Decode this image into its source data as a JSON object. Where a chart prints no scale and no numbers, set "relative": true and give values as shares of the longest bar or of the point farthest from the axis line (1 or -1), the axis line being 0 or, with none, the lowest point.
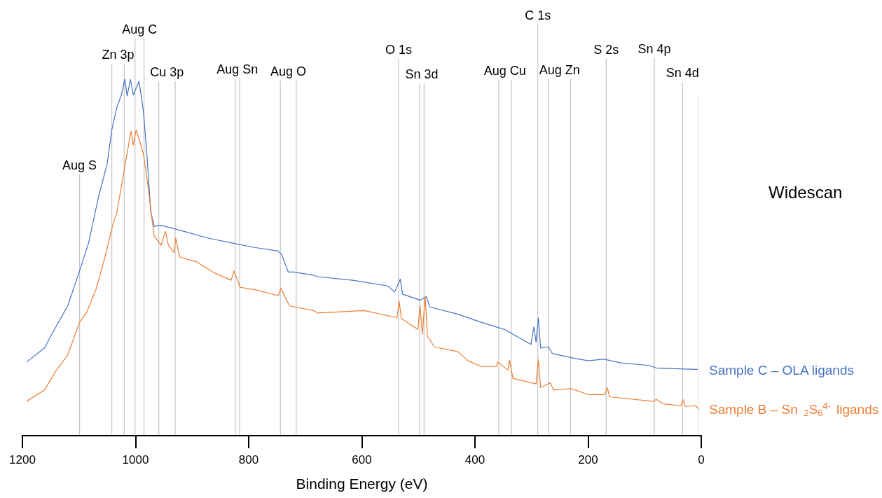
{
  "chart_data": {
    "type": "line",
    "title": "Widescan",
    "xlabel": "Binding Energy (eV)",
    "relative": true,
    "xlim": [
      1200,
      0
    ],
    "xticks": [
      1200,
      1000,
      800,
      600,
      400,
      200,
      0
    ],
    "grid": false,
    "marker": "none",
    "line_style": "solid",
    "series": [
      {
        "name": "Sample C – OLA ligands",
        "color": "#4472c4",
        "x": [
          1192,
          1161,
          1141,
          1120,
          1099,
          1083,
          1066,
          1050,
          1042,
          1033,
          1025,
          1019,
          1015,
          1009,
          1004,
          994,
          990,
          986,
          980,
          973,
          967,
          955,
          914,
          872,
          831,
          790,
          748,
          742,
          730,
          720,
          686,
          678,
          616,
          554,
          542,
          532,
          528,
          497,
          486,
          480,
          431,
          389,
          348,
          301,
          296,
          292,
          288,
          284,
          270,
          263,
          224,
          199,
          173,
          142,
          92,
          80,
          30,
          7
        ],
        "values": [
          0.207,
          0.246,
          0.305,
          0.364,
          0.462,
          0.541,
          0.666,
          0.764,
          0.858,
          0.921,
          0.956,
          1.0,
          0.953,
          0.999,
          0.956,
          0.994,
          0.953,
          0.907,
          0.789,
          0.626,
          0.587,
          0.59,
          0.573,
          0.554,
          0.541,
          0.528,
          0.518,
          0.509,
          0.459,
          0.459,
          0.45,
          0.446,
          0.436,
          0.42,
          0.403,
          0.439,
          0.397,
          0.38,
          0.39,
          0.361,
          0.341,
          0.318,
          0.298,
          0.256,
          0.305,
          0.263,
          0.33,
          0.246,
          0.249,
          0.23,
          0.217,
          0.21,
          0.215,
          0.204,
          0.197,
          0.19,
          0.187,
          0.186
        ]
      },
      {
        "name": "Sample B – Sn$_{2}$S$_{6}$$^{4-}$ ligands",
        "color": "#ed7d31",
        "x": [
          1192,
          1161,
          1141,
          1120,
          1099,
          1087,
          1070,
          1054,
          1039,
          1033,
          1021,
          1008,
          1004,
          999,
          992,
          986,
          980,
          971,
          967,
          955,
          947,
          942,
          932,
          929,
          922,
          893,
          860,
          831,
          826,
          815,
          790,
          748,
          743,
          728,
          686,
          678,
          596,
          538,
          534,
          530,
          501,
          497,
          493,
          488,
          484,
          472,
          431,
          412,
          389,
          362,
          360,
          342,
          339,
          333,
          292,
          288,
          284,
          267,
          261,
          230,
          199,
          171,
          166,
          162,
          84,
          80,
          67,
          36,
          32,
          28,
          10,
          5
        ],
        "values": [
          0.097,
          0.128,
          0.181,
          0.226,
          0.318,
          0.344,
          0.41,
          0.501,
          0.599,
          0.626,
          0.737,
          0.855,
          0.815,
          0.858,
          0.823,
          0.789,
          0.725,
          0.607,
          0.56,
          0.534,
          0.573,
          0.534,
          0.514,
          0.554,
          0.501,
          0.488,
          0.456,
          0.436,
          0.462,
          0.416,
          0.41,
          0.393,
          0.413,
          0.364,
          0.351,
          0.344,
          0.351,
          0.331,
          0.377,
          0.328,
          0.298,
          0.364,
          0.285,
          0.389,
          0.279,
          0.249,
          0.236,
          0.21,
          0.194,
          0.194,
          0.207,
          0.184,
          0.212,
          0.161,
          0.145,
          0.213,
          0.135,
          0.148,
          0.128,
          0.132,
          0.115,
          0.115,
          0.134,
          0.109,
          0.096,
          0.102,
          0.089,
          0.084,
          0.101,
          0.082,
          0.084,
          0.076
        ]
      }
    ],
    "ref_lines": [
      {
        "axis": "x",
        "value": 5,
        "label": null,
        "color": "#e6e6e6"
      },
      {
        "axis": "x",
        "value": 1099,
        "label": "Aug S",
        "color": "#c8c8c8"
      },
      {
        "axis": "x",
        "value": 1042,
        "label": "Zn 3p",
        "color": "#c8c8c8"
      },
      {
        "axis": "x",
        "value": 1020,
        "label": null,
        "color": "#c8c8c8"
      },
      {
        "axis": "x",
        "value": 1001,
        "label": "Aug C",
        "color": "#c8c8c8"
      },
      {
        "axis": "x",
        "value": 985,
        "label": null,
        "color": "#c8c8c8"
      },
      {
        "axis": "x",
        "value": 959,
        "label": "Cu 3p",
        "color": "#c8c8c8"
      },
      {
        "axis": "x",
        "value": 930,
        "label": null,
        "color": "#c8c8c8"
      },
      {
        "axis": "x",
        "value": 824,
        "label": "Aug Sn",
        "color": "#c8c8c8"
      },
      {
        "axis": "x",
        "value": 816,
        "label": null,
        "color": "#c8c8c8"
      },
      {
        "axis": "x",
        "value": 744,
        "label": "Aug O",
        "color": "#c8c8c8"
      },
      {
        "axis": "x",
        "value": 716,
        "label": null,
        "color": "#c8c8c8"
      },
      {
        "axis": "x",
        "value": 535,
        "label": "O 1s",
        "color": "#c8c8c8"
      },
      {
        "axis": "x",
        "value": 498,
        "label": "Sn 3d",
        "color": "#c8c8c8"
      },
      {
        "axis": "x",
        "value": 490,
        "label": null,
        "color": "#c8c8c8"
      },
      {
        "axis": "x",
        "value": 358,
        "label": "Aug Cu",
        "color": "#c8c8c8"
      },
      {
        "axis": "x",
        "value": 336,
        "label": null,
        "color": "#c8c8c8"
      },
      {
        "axis": "x",
        "value": 289,
        "label": "C 1s",
        "color": "#c8c8c8"
      },
      {
        "axis": "x",
        "value": 270,
        "label": "Aug Zn",
        "color": "#c8c8c8"
      },
      {
        "axis": "x",
        "value": 231,
        "label": null,
        "color": "#c8c8c8"
      },
      {
        "axis": "x",
        "value": 168,
        "label": "S 2s",
        "color": "#c8c8c8"
      },
      {
        "axis": "x",
        "value": 83,
        "label": "Sn 4p",
        "color": "#c8c8c8"
      },
      {
        "axis": "x",
        "value": 33,
        "label": "Sn 4d",
        "color": "#c8c8c8"
      }
    ]
  }
}
